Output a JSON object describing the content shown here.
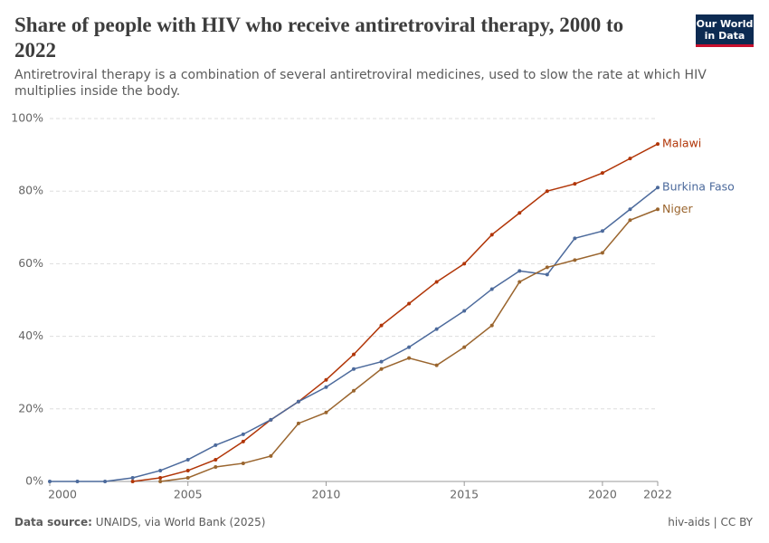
{
  "header": {
    "title": "Share of people with HIV who receive antiretroviral therapy, 2000 to 2022",
    "subtitle": "Antiretroviral therapy is a combination of several antiretroviral medicines, used to slow the rate at which HIV multiplies inside the body.",
    "logo": [
      "Our World",
      "in Data"
    ]
  },
  "chart_data": {
    "type": "line",
    "x": [
      2000,
      2001,
      2002,
      2003,
      2004,
      2005,
      2006,
      2007,
      2008,
      2009,
      2010,
      2011,
      2012,
      2013,
      2014,
      2015,
      2016,
      2017,
      2018,
      2019,
      2020,
      2021,
      2022
    ],
    "xlim": [
      2000,
      2022
    ],
    "xticks": [
      2000,
      2005,
      2010,
      2015,
      2020,
      2022
    ],
    "ylim": [
      0,
      100
    ],
    "yticks": [
      {
        "value": 0,
        "label": "0%"
      },
      {
        "value": 20,
        "label": "20%"
      },
      {
        "value": 40,
        "label": "40%"
      },
      {
        "value": 60,
        "label": "60%"
      },
      {
        "value": 80,
        "label": "80%"
      },
      {
        "value": 100,
        "label": "100%"
      }
    ],
    "grid": true,
    "series": [
      {
        "name": "Malawi",
        "color": "#b13507",
        "values": [
          null,
          null,
          null,
          0,
          1,
          3,
          6,
          11,
          17,
          22,
          28,
          35,
          43,
          49,
          55,
          60,
          68,
          74,
          80,
          82,
          85,
          89,
          93
        ]
      },
      {
        "name": "Burkina Faso",
        "color": "#4c6a9c",
        "values": [
          0,
          0,
          0,
          1,
          3,
          6,
          10,
          13,
          17,
          22,
          26,
          31,
          33,
          37,
          42,
          47,
          53,
          58,
          57,
          67,
          69,
          75,
          81
        ]
      },
      {
        "name": "Niger",
        "color": "#9a652e",
        "values": [
          null,
          null,
          null,
          null,
          0,
          1,
          4,
          5,
          7,
          16,
          19,
          25,
          31,
          34,
          32,
          37,
          43,
          55,
          59,
          61,
          63,
          72,
          75
        ]
      }
    ]
  },
  "footer": {
    "source_label": "Data source:",
    "source": "UNAIDS, via World Bank (2025)",
    "license": "hiv-aids | CC BY"
  }
}
